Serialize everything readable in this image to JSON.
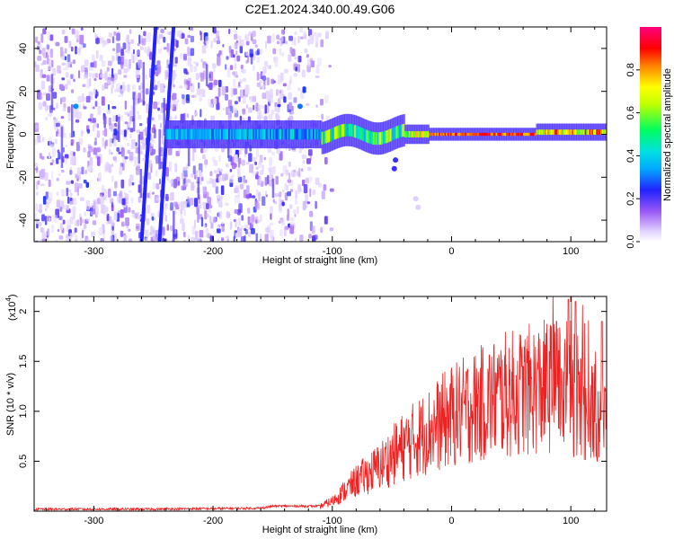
{
  "figure_title": "C2E1.2024.340.00.49.G06",
  "chart_data": [
    {
      "type": "heatmap",
      "title": "C2E1.2024.340.00.49.G06",
      "xlabel": "Height of straight line (km)",
      "ylabel": "Frequency (Hz)",
      "xlim": [
        -350,
        130
      ],
      "ylim": [
        -50,
        50
      ],
      "x_ticks": [
        -300,
        -200,
        -100,
        0,
        100
      ],
      "y_ticks": [
        -40,
        -20,
        0,
        20,
        40
      ],
      "colorbar": {
        "label": "Normalized spectral amplitude",
        "range": [
          0,
          1
        ],
        "ticks": [
          0.0,
          0.2,
          0.4,
          0.6,
          0.8
        ],
        "colormap": [
          "#ffffff",
          "#9b59f5",
          "#2222ff",
          "#00c0ff",
          "#00ff80",
          "#ffff00",
          "#ff8000",
          "#ff0000",
          "#ff00b0"
        ]
      },
      "features": {
        "noise_region_x": [
          -350,
          -110
        ],
        "diagonal_streaks": [
          {
            "x_bottom": -260,
            "x_top": -248
          },
          {
            "x_bottom": -245,
            "x_top": -233
          }
        ],
        "central_band": {
          "x_start": -240,
          "x_end": 130,
          "freq": 0,
          "peak_amplitude": 0.95
        }
      }
    },
    {
      "type": "line",
      "xlabel": "Height of straight line (km)",
      "ylabel": "SNR (10 * v/v)",
      "y_scale_label": "(x10",
      "y_scale_exponent": "4",
      "xlim": [
        -350,
        130
      ],
      "ylim": [
        0,
        2.15
      ],
      "x_ticks": [
        -300,
        -200,
        -100,
        0,
        100
      ],
      "y_ticks": [
        0.5,
        1.0,
        1.5,
        2.0
      ],
      "line_color": "#ee2222",
      "trend": [
        [
          -350,
          0.02
        ],
        [
          -250,
          0.02
        ],
        [
          -160,
          0.03
        ],
        [
          -150,
          0.05
        ],
        [
          -110,
          0.05
        ],
        [
          -100,
          0.1
        ],
        [
          -80,
          0.3
        ],
        [
          -60,
          0.45
        ],
        [
          -40,
          0.65
        ],
        [
          -20,
          0.8
        ],
        [
          0,
          0.95
        ],
        [
          20,
          1.05
        ],
        [
          40,
          1.15
        ],
        [
          60,
          1.2
        ],
        [
          80,
          1.25
        ],
        [
          100,
          1.2
        ],
        [
          110,
          1.1
        ],
        [
          120,
          1.0
        ],
        [
          130,
          0.9
        ]
      ],
      "peaks": [
        [
          98,
          2.12
        ],
        [
          104,
          2.1
        ],
        [
          126,
          1.9
        ],
        [
          60,
          1.45
        ]
      ]
    }
  ]
}
